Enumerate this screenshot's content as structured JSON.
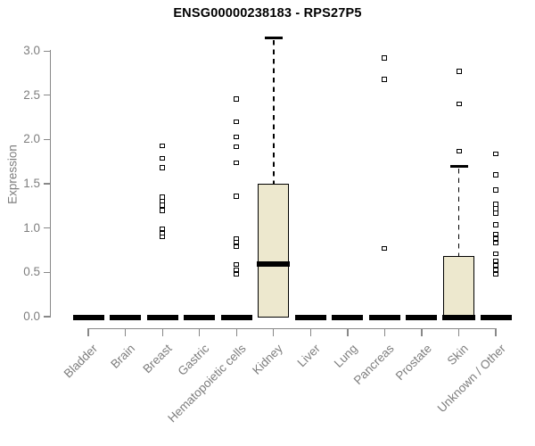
{
  "title": "ENSG00000238183 - RPS27P5",
  "colors": {
    "box_fill": "#EDE8CE",
    "box_border": "#000000",
    "median": "#000000",
    "axis": "#888888",
    "tick_label_gray": "#7E7E7E",
    "title_color": "#000000",
    "background": "#FFFFFF"
  },
  "chart_data": {
    "type": "boxplot",
    "title": "ENSG00000238183 - RPS27P5",
    "xlabel": "",
    "ylabel": "Expression",
    "ylim": [
      0.0,
      3.2
    ],
    "yticks": [
      0.0,
      0.5,
      1.0,
      1.5,
      2.0,
      2.5,
      3.0
    ],
    "ytick_labels": [
      "0.0",
      "0.5",
      "1.0",
      "1.5",
      "2.0",
      "2.5",
      "3.0"
    ],
    "grid": false,
    "legend": false,
    "categories": [
      "Bladder",
      "Brain",
      "Breast",
      "Gastric",
      "Hematopoietic cells",
      "Kidney",
      "Liver",
      "Lung",
      "Pancreas",
      "Prostate",
      "Skin",
      "Unknown / Other"
    ],
    "series": [
      {
        "category": "Bladder",
        "q1": 0,
        "median": 0,
        "q3": 0,
        "whisker_low": 0,
        "whisker_high": 0,
        "outliers": []
      },
      {
        "category": "Brain",
        "q1": 0,
        "median": 0,
        "q3": 0,
        "whisker_low": 0,
        "whisker_high": 0,
        "outliers": []
      },
      {
        "category": "Breast",
        "q1": 0,
        "median": 0,
        "q3": 0,
        "whisker_low": 0,
        "whisker_high": 0,
        "outliers": [
          1.93,
          1.79,
          1.68,
          1.35,
          1.3,
          1.26,
          1.2,
          0.99,
          0.94,
          0.9
        ]
      },
      {
        "category": "Gastric",
        "q1": 0,
        "median": 0,
        "q3": 0,
        "whisker_low": 0,
        "whisker_high": 0,
        "outliers": []
      },
      {
        "category": "Hematopoietic cells",
        "q1": 0,
        "median": 0,
        "q3": 0,
        "whisker_low": 0,
        "whisker_high": 0,
        "outliers": [
          2.46,
          2.2,
          2.03,
          1.92,
          1.74,
          1.36,
          0.88,
          0.84,
          0.79,
          0.59,
          0.53,
          0.48
        ]
      },
      {
        "category": "Kidney",
        "q1": 0,
        "median": 0.6,
        "q3": 1.5,
        "whisker_low": 0,
        "whisker_high": 3.15,
        "outliers": []
      },
      {
        "category": "Liver",
        "q1": 0,
        "median": 0,
        "q3": 0,
        "whisker_low": 0,
        "whisker_high": 0,
        "outliers": []
      },
      {
        "category": "Lung",
        "q1": 0,
        "median": 0,
        "q3": 0,
        "whisker_low": 0,
        "whisker_high": 0,
        "outliers": []
      },
      {
        "category": "Pancreas",
        "q1": 0,
        "median": 0,
        "q3": 0,
        "whisker_low": 0,
        "whisker_high": 0,
        "outliers": [
          2.92,
          2.68,
          0.77
        ]
      },
      {
        "category": "Prostate",
        "q1": 0,
        "median": 0,
        "q3": 0,
        "whisker_low": 0,
        "whisker_high": 0,
        "outliers": []
      },
      {
        "category": "Skin",
        "q1": 0,
        "median": 0,
        "q3": 0.68,
        "whisker_low": 0,
        "whisker_high": 1.7,
        "outliers": [
          2.77,
          2.4,
          1.87
        ]
      },
      {
        "category": "Unknown / Other",
        "q1": 0,
        "median": 0,
        "q3": 0,
        "whisker_low": 0,
        "whisker_high": 0,
        "outliers": [
          1.84,
          1.6,
          1.43,
          1.27,
          1.22,
          1.17,
          1.04,
          0.93,
          0.88,
          0.83,
          0.71,
          0.63,
          0.58,
          0.53,
          0.48
        ]
      }
    ]
  }
}
